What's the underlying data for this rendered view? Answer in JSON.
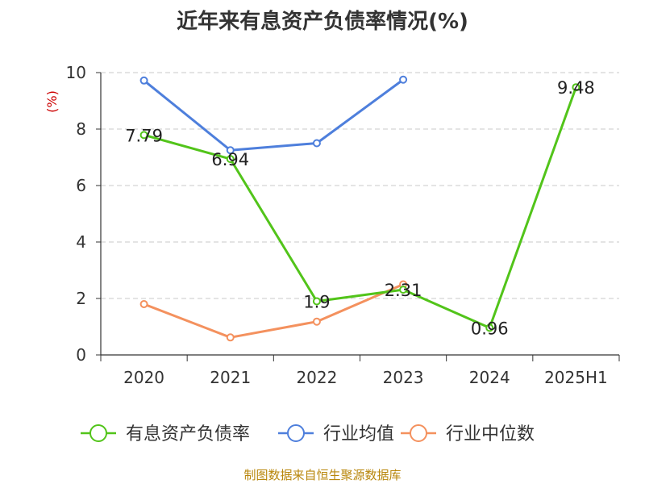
{
  "chart_data": {
    "type": "line",
    "title": "近年来有息资产负债率情况(%)",
    "ylabel": "(%)",
    "xlabel": "",
    "categories": [
      "2020",
      "2021",
      "2022",
      "2023",
      "2024",
      "2025H1"
    ],
    "ylim": [
      0,
      10
    ],
    "yticks": [
      0,
      2,
      4,
      6,
      8,
      10
    ],
    "grid": true,
    "legend_position": "bottom",
    "series": [
      {
        "name": "有息资产负债率",
        "color": "#52c41a",
        "values": [
          7.79,
          6.94,
          1.9,
          2.31,
          0.96,
          9.48
        ],
        "labels": [
          "7.79",
          "6.94",
          "1.9",
          "2.31",
          "0.96",
          "9.48"
        ]
      },
      {
        "name": "行业均值",
        "color": "#4e7fdc",
        "values": [
          9.72,
          7.25,
          7.5,
          9.75,
          null,
          null
        ]
      },
      {
        "name": "行业中位数",
        "color": "#f4915e",
        "values": [
          1.8,
          0.62,
          1.18,
          2.5,
          null,
          null
        ]
      }
    ],
    "source": "制图数据来自恒生聚源数据库"
  }
}
